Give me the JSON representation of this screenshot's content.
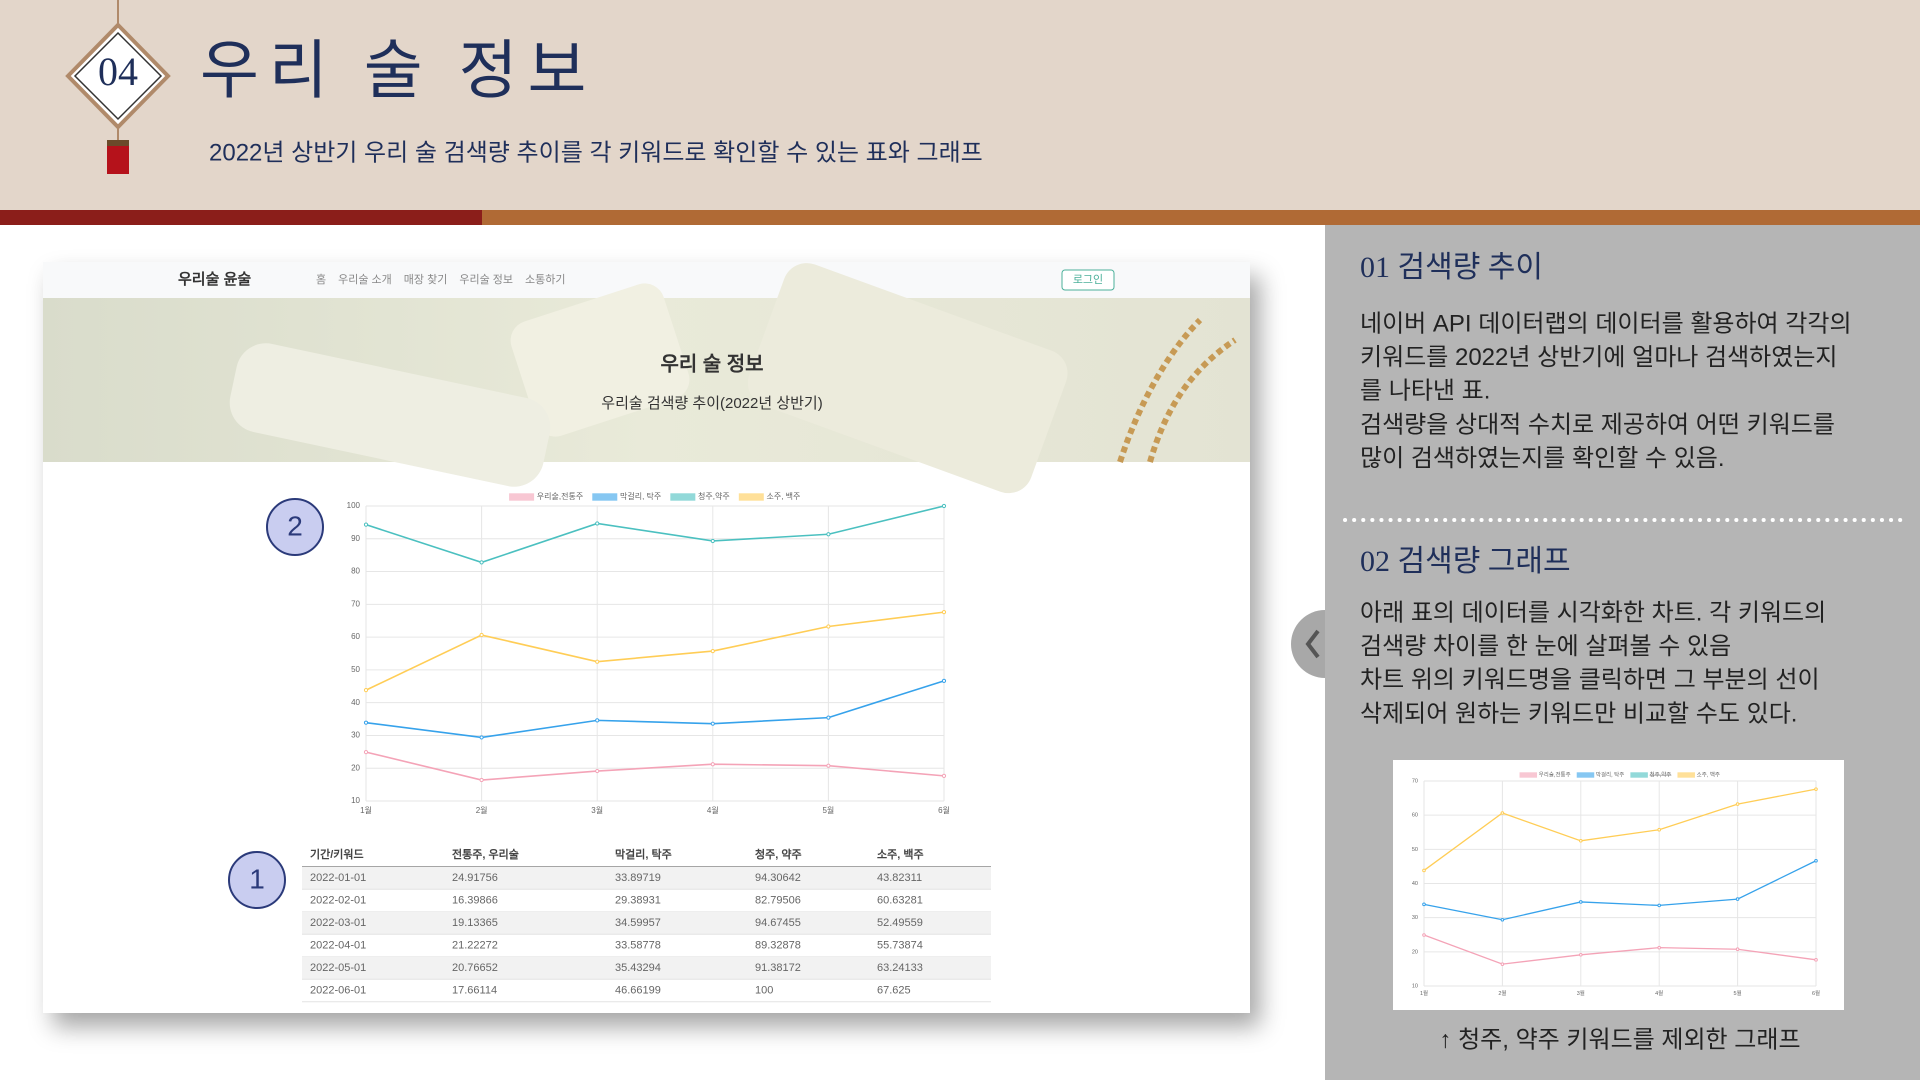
{
  "header": {
    "number": "04",
    "title": "우리 술 정보",
    "subtitle": "2022년 상반기 우리 술 검색량 추이를 각 키워드로 확인할 수 있는 표와 그래프"
  },
  "site": {
    "brand": "우리술 윤술",
    "nav": [
      "홈",
      "우리술 소개",
      "매장 찾기",
      "우리술 정보",
      "소통하기"
    ],
    "login": "로그인",
    "hero_title": "우리 술 정보",
    "hero_subtitle": "우리술 검색량 추이(2022년 상반기)",
    "badges": [
      "2",
      "1"
    ]
  },
  "table": {
    "header": [
      "기간/키워드",
      "전통주, 우리술",
      "막걸리, 탁주",
      "청주, 약주",
      "소주, 백주"
    ],
    "rows": [
      [
        "2022-01-01",
        24.91756,
        33.89719,
        94.30642,
        43.82311
      ],
      [
        "2022-02-01",
        16.39866,
        29.38931,
        82.79506,
        60.63281
      ],
      [
        "2022-03-01",
        19.13365,
        34.59957,
        94.67455,
        52.49559
      ],
      [
        "2022-04-01",
        21.22272,
        33.58778,
        89.32878,
        55.73874
      ],
      [
        "2022-05-01",
        20.76652,
        35.43294,
        91.38172,
        63.24133
      ],
      [
        "2022-06-01",
        17.66114,
        46.66199,
        100,
        67.625
      ]
    ]
  },
  "chart_data": [
    {
      "type": "line",
      "categories": [
        "1월",
        "2월",
        "3월",
        "4월",
        "5월",
        "6월"
      ],
      "series": [
        {
          "name": "우리술,전통주",
          "color": "#f4a3b7",
          "values": [
            24.91756,
            16.39866,
            19.13365,
            21.22272,
            20.76652,
            17.66114
          ]
        },
        {
          "name": "막걸리, 탁주",
          "color": "#36a2eb",
          "values": [
            33.89719,
            29.38931,
            34.59957,
            33.58778,
            35.43294,
            46.66199
          ]
        },
        {
          "name": "청주,약주",
          "color": "#4bc0c0",
          "values": [
            94.30642,
            82.79506,
            94.67455,
            89.32878,
            91.38172,
            100
          ]
        },
        {
          "name": "소주, 백주",
          "color": "#ffcd56",
          "values": [
            43.82311,
            60.63281,
            52.49559,
            55.73874,
            63.24133,
            67.625
          ]
        }
      ],
      "ylim": [
        10,
        100
      ],
      "yticks": [
        10,
        20,
        30,
        40,
        50,
        60,
        70,
        80,
        90,
        100
      ],
      "grid": true,
      "legend": "top"
    },
    {
      "type": "line",
      "categories": [
        "1월",
        "2월",
        "3월",
        "4월",
        "5월",
        "6월"
      ],
      "series": [
        {
          "name": "우리술,전통주",
          "color": "#f4a3b7",
          "values": [
            24.91756,
            16.39866,
            19.13365,
            21.22272,
            20.76652,
            17.66114
          ]
        },
        {
          "name": "막걸리, 탁주",
          "color": "#36a2eb",
          "values": [
            33.89719,
            29.38931,
            34.59957,
            33.58778,
            35.43294,
            46.66199
          ]
        },
        {
          "name": "소주, 백주",
          "color": "#ffcd56",
          "values": [
            43.82311,
            60.63281,
            52.49559,
            55.73874,
            63.24133,
            67.625
          ]
        }
      ],
      "hidden_series": [
        {
          "name": "청주,약주",
          "color": "#4bc0c0"
        }
      ],
      "ylim": [
        10,
        70
      ],
      "yticks": [
        10,
        20,
        30,
        40,
        50,
        60,
        70
      ],
      "grid": true,
      "legend": "top"
    }
  ],
  "panel": {
    "section1": {
      "title": "01 검색량 추이",
      "lines": [
        "네이버 API 데이터랩의 데이터를 활용하여 각각의",
        "키워드를 2022년 상반기에 얼마나 검색하였는지",
        "를 나타낸 표.",
        "검색량을 상대적 수치로 제공하여 어떤 키워드를",
        "많이 검색하였는지를 확인할 수 있음."
      ]
    },
    "section2": {
      "title": "02 검색량 그래프",
      "lines": [
        "아래 표의 데이터를 시각화한 차트. 각 키워드의",
        "검색량 차이를 한 눈에 살펴볼 수 있음",
        "차트 위의 키워드명을 클릭하면 그 부분의 선이",
        "삭제되어 원하는 키워드만 비교할 수도 있다."
      ]
    },
    "caption": "↑ 청주, 약주 키워드를 제외한 그래프"
  }
}
